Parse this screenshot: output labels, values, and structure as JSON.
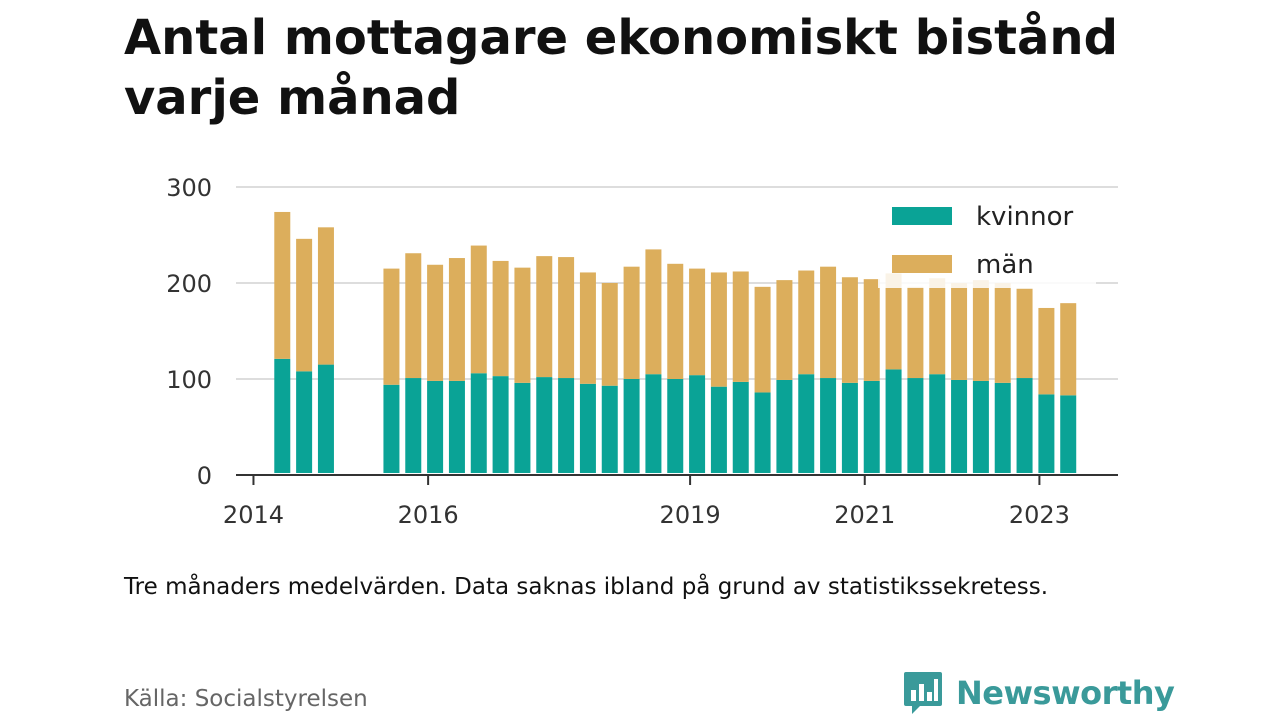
{
  "title": "Antal mottagare ekonomiskt bistånd varje månad",
  "note": "Tre månaders medelvärden. Data saknas ibland på grund av statistikssekretess.",
  "source": "Källa: Socialstyrelsen",
  "logo": {
    "text": "Newsworthy",
    "icon": "newsworthy-bar-chart-icon"
  },
  "colors": {
    "kvinnor": "#0aa396",
    "man": "#dcae5c",
    "grid": "#dddddd",
    "axis": "#333333"
  },
  "chart_data": {
    "type": "bar",
    "stacked": true,
    "ylim": [
      0,
      300
    ],
    "yticks": [
      0,
      100,
      200,
      300
    ],
    "xlim": [
      2013.8,
      2023.9
    ],
    "xticks": [
      2014,
      2016,
      2019,
      2021,
      2023
    ],
    "legend": "top-right",
    "grid": true,
    "series": [
      {
        "name": "kvinnor",
        "color": "#0aa396",
        "values": [
          121,
          108,
          115,
          94,
          101,
          98,
          98,
          106,
          103,
          96,
          102,
          101,
          95,
          93,
          100,
          105,
          100,
          104,
          92,
          97,
          86,
          99,
          105,
          101,
          96,
          98,
          110,
          101,
          105,
          99,
          98,
          96,
          101,
          84,
          83
        ]
      },
      {
        "name": "män",
        "color": "#dcae5c",
        "values": [
          153,
          138,
          143,
          121,
          130,
          121,
          128,
          133,
          120,
          120,
          126,
          126,
          116,
          107,
          117,
          130,
          120,
          111,
          119,
          115,
          110,
          104,
          108,
          116,
          110,
          106,
          100,
          95,
          100,
          101,
          105,
          104,
          93,
          90,
          96
        ]
      }
    ],
    "x": [
      2014.33,
      2014.58,
      2014.83,
      2015.58,
      2015.83,
      2016.08,
      2016.33,
      2016.58,
      2016.83,
      2017.08,
      2017.33,
      2017.58,
      2017.83,
      2018.08,
      2018.33,
      2018.58,
      2018.83,
      2019.08,
      2019.33,
      2019.58,
      2019.83,
      2020.08,
      2020.33,
      2020.58,
      2020.83,
      2021.08,
      2021.33,
      2021.58,
      2021.83,
      2022.08,
      2022.33,
      2022.58,
      2022.83,
      2023.08,
      2023.33
    ]
  }
}
